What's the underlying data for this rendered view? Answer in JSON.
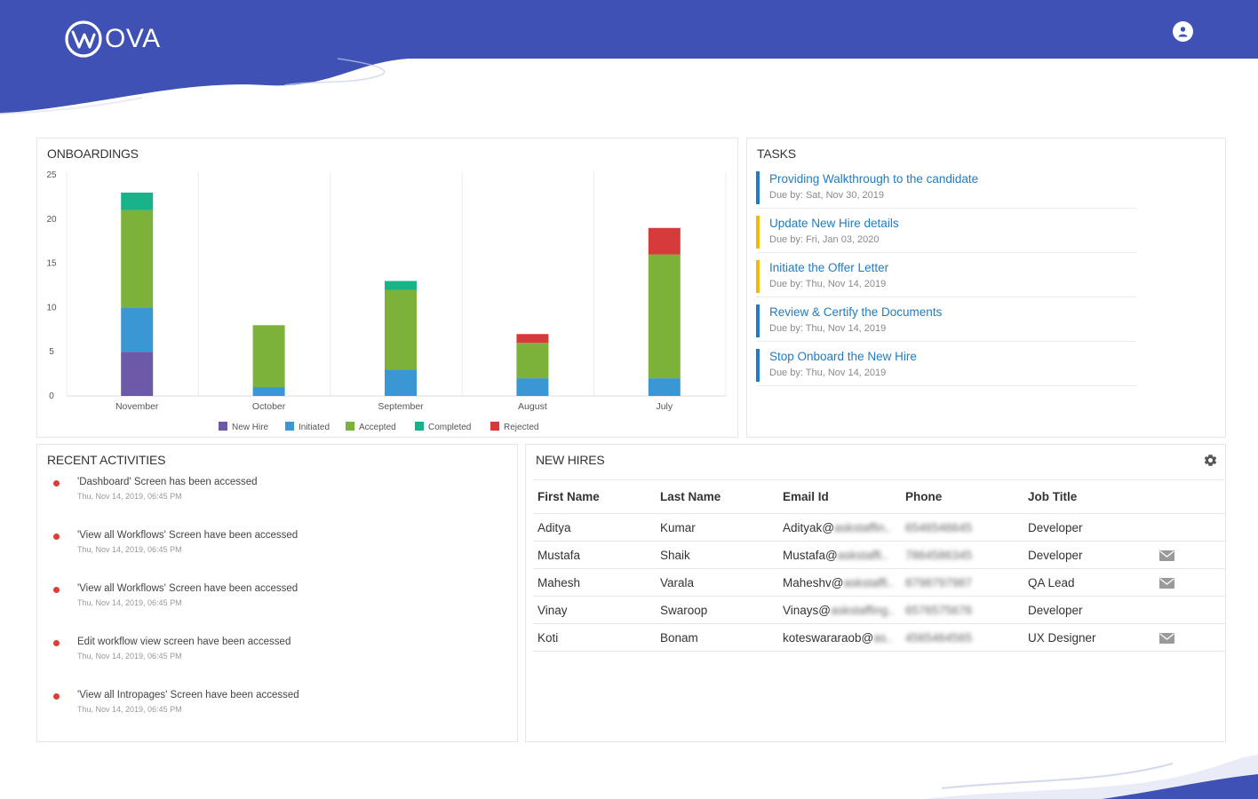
{
  "brand": {
    "logo_text": "OVA",
    "primary_color": "#3f51b5"
  },
  "header": {
    "user_icon": "user-avatar-icon"
  },
  "onboardings": {
    "title": "ONBOARDINGS"
  },
  "chart_data": {
    "type": "bar",
    "stacked": true,
    "categories": [
      "November",
      "October",
      "September",
      "August",
      "July"
    ],
    "series": [
      {
        "name": "New Hire",
        "color": "#6c5aa8",
        "values": [
          5,
          0,
          0,
          0,
          0
        ]
      },
      {
        "name": "Initiated",
        "color": "#3a97d4",
        "values": [
          5,
          1,
          3,
          2,
          2
        ]
      },
      {
        "name": "Accepted",
        "color": "#7cb23a",
        "values": [
          11,
          7,
          9,
          4,
          14
        ]
      },
      {
        "name": "Completed",
        "color": "#19b38a",
        "values": [
          2,
          0,
          1,
          0,
          0
        ]
      },
      {
        "name": "Rejected",
        "color": "#d63a3a",
        "values": [
          0,
          0,
          0,
          1,
          3
        ]
      }
    ],
    "yticks": [
      "0",
      "5",
      "10",
      "15",
      "20",
      "25"
    ],
    "ylim": [
      0,
      25
    ],
    "legend_position": "bottom",
    "grid": true
  },
  "tasks": {
    "title": "TASKS",
    "items": [
      {
        "title": "Providing Walkthrough to the candidate",
        "due": "Due by: Sat, Nov 30, 2019",
        "color": "#1f7cc4"
      },
      {
        "title": "Update New Hire details",
        "due": "Due by: Fri, Jan 03, 2020",
        "color": "#f5b800"
      },
      {
        "title": "Initiate the Offer Letter",
        "due": "Due by: Thu, Nov 14, 2019",
        "color": "#f5b800"
      },
      {
        "title": "Review & Certify the Documents",
        "due": "Due by: Thu, Nov 14, 2019",
        "color": "#1f7cc4"
      },
      {
        "title": "Stop Onboard the New Hire",
        "due": "Due by: Thu, Nov 14, 2019",
        "color": "#1f7cc4"
      }
    ]
  },
  "activities": {
    "title": "RECENT ACTIVITIES",
    "items": [
      {
        "text": "'Dashboard' Screen has been accessed",
        "time": "Thu, Nov 14, 2019, 06:45 PM"
      },
      {
        "text": "'View all Workflows' Screen have been accessed",
        "time": "Thu, Nov 14, 2019, 06:45 PM"
      },
      {
        "text": "'View all Workflows' Screen have been accessed",
        "time": "Thu, Nov 14, 2019, 06:45 PM"
      },
      {
        "text": "Edit workflow view screen have been accessed",
        "time": "Thu, Nov 14, 2019, 06:45 PM"
      },
      {
        "text": "'View all Intropages' Screen have been accessed",
        "time": "Thu, Nov 14, 2019, 06:45 PM"
      }
    ]
  },
  "new_hires": {
    "title": "NEW HIRES",
    "settings_icon": "gear-icon",
    "columns": [
      "First Name",
      "Last Name",
      "Email Id",
      "Phone",
      "Job Title"
    ],
    "rows": [
      {
        "first": "Aditya",
        "last": "Kumar",
        "email_visible": "Adityak@",
        "email_blurred": "askstaffin..",
        "phone_blurred": "6546546645",
        "job": "Developer",
        "mail": false
      },
      {
        "first": "Mustafa",
        "last": "Shaik",
        "email_visible": "Mustafa@",
        "email_blurred": "askstaffi..",
        "phone_blurred": "7864586345",
        "job": "Developer",
        "mail": true
      },
      {
        "first": "Mahesh",
        "last": "Varala",
        "email_visible": "Maheshv@",
        "email_blurred": "askstaffi..",
        "phone_blurred": "8798797987",
        "job": "QA Lead",
        "mail": true
      },
      {
        "first": "Vinay",
        "last": "Swaroop",
        "email_visible": "Vinays@",
        "email_blurred": "askstaffing..",
        "phone_blurred": "6576575676",
        "job": "Developer",
        "mail": false
      },
      {
        "first": "Koti",
        "last": "Bonam",
        "email_visible": "koteswararaob@",
        "email_blurred": "as..",
        "phone_blurred": "4565464565",
        "job": "UX Designer",
        "mail": true
      }
    ]
  }
}
